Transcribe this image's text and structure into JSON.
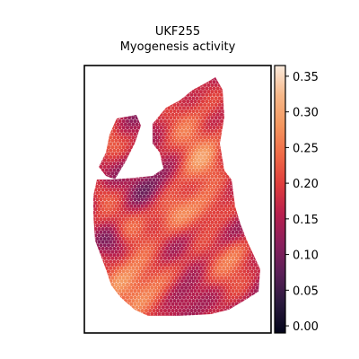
{
  "chart_data": {
    "type": "heatmap",
    "title": "UKF255",
    "subtitle": "Myogenesis activity",
    "xlabel": "",
    "ylabel": "",
    "grid": false,
    "colormap": "rocket",
    "colormap_stops": [
      "#03051a",
      "#2a1a3e",
      "#5a1f57",
      "#8a1f5c",
      "#b81f4d",
      "#df3d3c",
      "#f06b47",
      "#f4975f",
      "#f6b889",
      "#faebdd"
    ],
    "colorbar": {
      "min": -0.01,
      "max": 0.365,
      "ticks": [
        0.0,
        0.05,
        0.1,
        0.15,
        0.2,
        0.25,
        0.3,
        0.35
      ],
      "tick_labels": [
        "0.00",
        "0.05",
        "0.10",
        "0.15",
        "0.20",
        "0.25",
        "0.30",
        "0.35"
      ]
    }
  }
}
